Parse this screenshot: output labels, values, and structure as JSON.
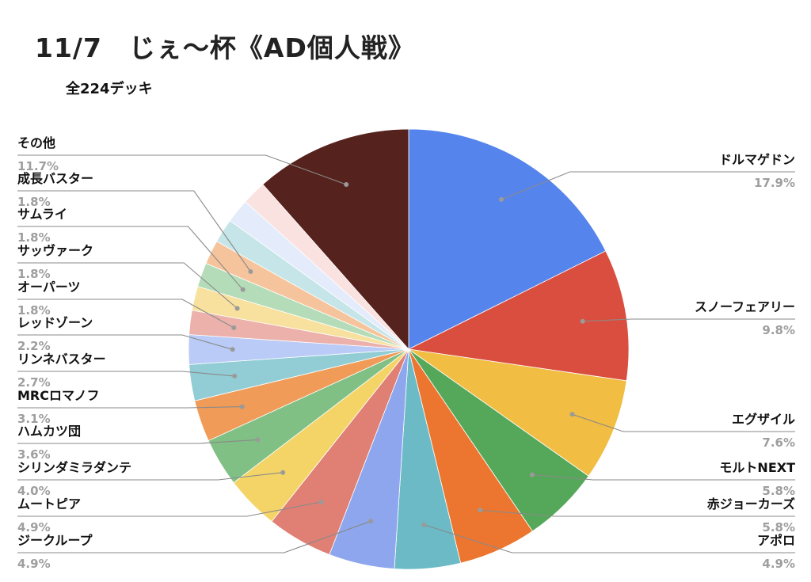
{
  "title": "11/7　じぇ〜杯《AD個人戦》",
  "subtitle": "全224デッキ",
  "chart_data": {
    "type": "pie",
    "title": "11/7　じぇ〜杯《AD個人戦》",
    "subtitle": "全224デッキ",
    "start_angle": "12 o'clock",
    "direction": "clockwise",
    "slices": [
      {
        "label": "ドルマゲドン",
        "percent_label": "17.9%",
        "value": 17.9,
        "color": "#5484EC"
      },
      {
        "label": "スノーフェアリー",
        "percent_label": "9.8%",
        "value": 9.8,
        "color": "#D94E3F"
      },
      {
        "label": "エグザイル",
        "percent_label": "7.6%",
        "value": 7.6,
        "color": "#F1BD42"
      },
      {
        "label": "モルトNEXT",
        "percent_label": "5.8%",
        "value": 5.8,
        "color": "#55A85A"
      },
      {
        "label": "赤ジョーカーズ",
        "percent_label": "5.8%",
        "value": 5.8,
        "color": "#EC7630"
      },
      {
        "label": "アポロ",
        "percent_label": "4.9%",
        "value": 4.9,
        "color": "#6BBAC5"
      },
      {
        "label": "ジークループ",
        "percent_label": "4.9%",
        "value": 4.9,
        "color": "#8DA6EE"
      },
      {
        "label": "ムートピア",
        "percent_label": "4.9%",
        "value": 4.9,
        "color": "#E07F74"
      },
      {
        "label": "シリンダミラダンテ",
        "percent_label": "4.0%",
        "value": 4.0,
        "color": "#F4D467"
      },
      {
        "label": "ハムカツ団",
        "percent_label": "3.6%",
        "value": 3.6,
        "color": "#80C085"
      },
      {
        "label": "MRCロマノフ",
        "percent_label": "3.1%",
        "value": 3.1,
        "color": "#F09B58"
      },
      {
        "label": "リンネバスター",
        "percent_label": "2.7%",
        "value": 2.7,
        "color": "#92CDD5"
      },
      {
        "label": "レッドゾーン",
        "percent_label": "2.2%",
        "value": 2.2,
        "color": "#B9CBF6"
      },
      {
        "label": "オーパーツ",
        "percent_label": "1.8%",
        "value": 1.8,
        "color": "#ECB1AA"
      },
      {
        "label": "サッヴァーク",
        "percent_label": "1.8%",
        "value": 1.8,
        "color": "#F8E19E"
      },
      {
        "label": "サムライ",
        "percent_label": "1.8%",
        "value": 1.8,
        "color": "#B5DCB9"
      },
      {
        "label": "成長バスター",
        "percent_label": "1.8%",
        "value": 1.8,
        "color": "#F6C49C"
      },
      {
        "label": "",
        "percent_label": "",
        "value": 1.8,
        "color": "#C6E5E8"
      },
      {
        "label": "",
        "percent_label": "",
        "value": 1.8,
        "color": "#E4EBFB"
      },
      {
        "label": "",
        "percent_label": "",
        "value": 1.8,
        "color": "#F9E2E0"
      },
      {
        "label": "その他",
        "percent_label": "11.7%",
        "value": 11.7,
        "color": "#56221E"
      }
    ]
  }
}
